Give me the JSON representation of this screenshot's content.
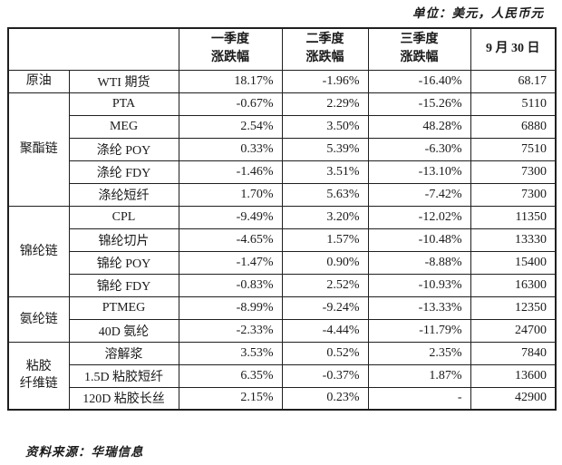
{
  "meta": {
    "unit_note": "单位：美元，人民币元",
    "source_note": "资料来源：华瑞信息"
  },
  "table": {
    "headers": {
      "empty": "",
      "q1": "一季度\n涨跌幅",
      "q2": "二季度\n涨跌幅",
      "q3": "三季度\n涨跌幅",
      "date": "9 月 30 日"
    },
    "groups": [
      {
        "category": "原油",
        "rows": [
          {
            "name": "WTI 期货",
            "q1": "18.17%",
            "q2": "-1.96%",
            "q3": "-16.40%",
            "price": "68.17"
          }
        ]
      },
      {
        "category": "聚酯链",
        "rows": [
          {
            "name": "PTA",
            "q1": "-0.67%",
            "q2": "2.29%",
            "q3": "-15.26%",
            "price": "5110"
          },
          {
            "name": "MEG",
            "q1": "2.54%",
            "q2": "3.50%",
            "q3": "48.28%",
            "price": "6880"
          },
          {
            "name": "涤纶 POY",
            "q1": "0.33%",
            "q2": "5.39%",
            "q3": "-6.30%",
            "price": "7510"
          },
          {
            "name": "涤纶 FDY",
            "q1": "-1.46%",
            "q2": "3.51%",
            "q3": "-13.10%",
            "price": "7300"
          },
          {
            "name": "涤纶短纤",
            "q1": "1.70%",
            "q2": "5.63%",
            "q3": "-7.42%",
            "price": "7300"
          }
        ]
      },
      {
        "category": "锦纶链",
        "rows": [
          {
            "name": "CPL",
            "q1": "-9.49%",
            "q2": "3.20%",
            "q3": "-12.02%",
            "price": "11350"
          },
          {
            "name": "锦纶切片",
            "q1": "-4.65%",
            "q2": "1.57%",
            "q3": "-10.48%",
            "price": "13330"
          },
          {
            "name": "锦纶 POY",
            "q1": "-1.47%",
            "q2": "0.90%",
            "q3": "-8.88%",
            "price": "15400"
          },
          {
            "name": "锦纶 FDY",
            "q1": "-0.83%",
            "q2": "2.52%",
            "q3": "-10.93%",
            "price": "16300"
          }
        ]
      },
      {
        "category": "氨纶链",
        "rows": [
          {
            "name": "PTMEG",
            "q1": "-8.99%",
            "q2": "-9.24%",
            "q3": "-13.33%",
            "price": "12350"
          },
          {
            "name": "40D 氨纶",
            "q1": "-2.33%",
            "q2": "-4.44%",
            "q3": "-11.79%",
            "price": "24700"
          }
        ]
      },
      {
        "category": "粘胶\n纤维链",
        "rows": [
          {
            "name": "溶解浆",
            "q1": "3.53%",
            "q2": "0.52%",
            "q3": "2.35%",
            "price": "7840"
          },
          {
            "name": "1.5D 粘胶短纤",
            "q1": "6.35%",
            "q2": "-0.37%",
            "q3": "1.87%",
            "price": "13600"
          },
          {
            "name": "120D 粘胶长丝",
            "q1": "2.15%",
            "q2": "0.23%",
            "q3": "-",
            "price": "42900"
          }
        ]
      }
    ]
  }
}
